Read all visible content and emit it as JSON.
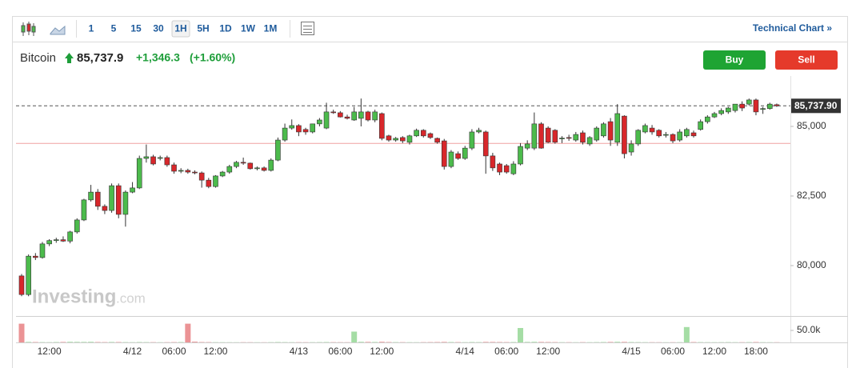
{
  "toolbar": {
    "intervals": [
      "1",
      "5",
      "15",
      "30",
      "1H",
      "5H",
      "1D",
      "1W",
      "1M"
    ],
    "active": "1H",
    "link": "Technical Chart »"
  },
  "quote": {
    "name": "Bitcoin",
    "price": "85,737.9",
    "change": "+1,346.3",
    "change_pct": "(+1.60%)"
  },
  "buttons": {
    "buy": "Buy",
    "sell": "Sell"
  },
  "watermark": {
    "brand": "Investing",
    "suffix": ".com"
  },
  "chart_data": {
    "type": "candlestick",
    "categories": [
      null,
      null,
      null,
      null,
      "12:00",
      null,
      null,
      null,
      null,
      null,
      null,
      null,
      null,
      null,
      null,
      null,
      "4/12",
      null,
      null,
      null,
      null,
      null,
      "06:00",
      null,
      null,
      null,
      null,
      null,
      "12:00",
      null,
      null,
      null,
      null,
      null,
      null,
      null,
      null,
      null,
      null,
      null,
      "4/13",
      null,
      null,
      null,
      null,
      null,
      "06:00",
      null,
      null,
      null,
      null,
      null,
      "12:00",
      null,
      null,
      null,
      null,
      null,
      null,
      null,
      null,
      null,
      null,
      null,
      "4/14",
      null,
      null,
      null,
      null,
      null,
      "06:00",
      null,
      null,
      null,
      null,
      null,
      "12:00",
      null,
      null,
      null,
      null,
      null,
      null,
      null,
      null,
      null,
      null,
      null,
      "4/15",
      null,
      null,
      null,
      null,
      null,
      "06:00",
      null,
      null,
      null,
      null,
      null,
      "12:00",
      null,
      null,
      null,
      null,
      null,
      "18:00",
      null,
      null,
      null
    ],
    "open": [
      79630,
      78960,
      80340,
      80290,
      80780,
      80900,
      80930,
      80880,
      81210,
      81640,
      82360,
      82640,
      82130,
      81980,
      82870,
      81840,
      82640,
      82790,
      83850,
      83910,
      83860,
      83880,
      83620,
      83390,
      83420,
      83360,
      83330,
      83070,
      82840,
      83220,
      83360,
      83560,
      83710,
      83680,
      83480,
      83510,
      83420,
      83790,
      84510,
      84940,
      85030,
      84890,
      84800,
      85090,
      84940,
      85520,
      85490,
      85340,
      85230,
      85290,
      85520,
      85230,
      85460,
      84660,
      84510,
      84600,
      84430,
      84660,
      84860,
      84740,
      84570,
      84480,
      83560,
      84020,
      83850,
      84220,
      84800,
      84800,
      83940,
      83650,
      83590,
      83300,
      83650,
      84220,
      84220,
      85090,
      84940,
      84860,
      84550,
      84600,
      84510,
      84770,
      84370,
      84510,
      84660,
      85170,
      84430,
      85370,
      84080,
      84370,
      84800,
      84940,
      84860,
      84690,
      84710,
      84510,
      84660,
      84770,
      84890,
      85170,
      85340,
      85460,
      85520,
      85570,
      85800,
      85800,
      85950,
      85610,
      85640,
      85780
    ],
    "high": [
      79700,
      80400,
      80450,
      80850,
      80950,
      81000,
      81050,
      81250,
      81700,
      82400,
      82900,
      82750,
      82200,
      82950,
      82950,
      82700,
      83000,
      83950,
      84350,
      83980,
      83950,
      83950,
      83700,
      83500,
      83480,
      83420,
      83380,
      83150,
      83250,
      83400,
      83620,
      83760,
      83880,
      83700,
      83560,
      83560,
      83850,
      84600,
      85100,
      85250,
      85080,
      84950,
      85100,
      85300,
      85850,
      85600,
      85550,
      85420,
      85700,
      86000,
      85560,
      85600,
      85500,
      84700,
      84620,
      84650,
      84700,
      84920,
      84900,
      84780,
      84600,
      84550,
      84150,
      84100,
      84300,
      84900,
      84950,
      84850,
      84050,
      83700,
      83650,
      83750,
      84400,
      84500,
      85500,
      85150,
      85000,
      84900,
      84650,
      84700,
      84800,
      84850,
      84650,
      85000,
      85150,
      85300,
      85800,
      85400,
      84500,
      84900,
      85100,
      85050,
      84900,
      84800,
      84750,
      84900,
      84950,
      84850,
      85250,
      85400,
      85520,
      85650,
      85700,
      85800,
      85900,
      86000,
      86000,
      85700,
      85850,
      85820
    ],
    "low": [
      78900,
      78900,
      80200,
      80250,
      80700,
      80820,
      80850,
      80800,
      81150,
      81600,
      82300,
      82000,
      81850,
      81900,
      81700,
      81400,
      82600,
      82750,
      83700,
      83600,
      83780,
      83550,
      83300,
      83320,
      83300,
      83280,
      82800,
      82780,
      82800,
      83180,
      83300,
      83500,
      83620,
      83450,
      83420,
      83380,
      83380,
      83750,
      84450,
      84880,
      84650,
      84700,
      84750,
      85000,
      84900,
      85450,
      85320,
      85250,
      85200,
      85000,
      85180,
      85150,
      84500,
      84450,
      84450,
      84400,
      84350,
      84620,
      84600,
      84550,
      84380,
      83450,
      83500,
      83800,
      83800,
      84150,
      84750,
      83300,
      83400,
      83250,
      83300,
      83250,
      83600,
      84150,
      84150,
      84200,
      84400,
      84380,
      84400,
      84480,
      84450,
      84350,
      84300,
      84450,
      84600,
      84300,
      84300,
      83850,
      83950,
      84300,
      84750,
      84700,
      84600,
      84600,
      84400,
      84450,
      84600,
      84600,
      84850,
      85100,
      85300,
      85400,
      85450,
      85500,
      85550,
      85750,
      85400,
      85450,
      85600,
      85700
    ],
    "close": [
      78960,
      80340,
      80290,
      80780,
      80900,
      80930,
      80880,
      81210,
      81640,
      82360,
      82640,
      82130,
      81980,
      82870,
      81840,
      82640,
      82790,
      83850,
      83910,
      83650,
      83880,
      83620,
      83390,
      83420,
      83360,
      83330,
      83070,
      82840,
      83220,
      83360,
      83560,
      83710,
      83680,
      83480,
      83510,
      83420,
      83790,
      84510,
      84940,
      85030,
      84800,
      84800,
      85090,
      85230,
      85520,
      85490,
      85340,
      85290,
      85520,
      85520,
      85230,
      85520,
      84570,
      84510,
      84570,
      84480,
      84660,
      84860,
      84660,
      84600,
      84430,
      83560,
      84080,
      83850,
      84220,
      84800,
      84860,
      83940,
      83510,
      83360,
      83360,
      83650,
      84280,
      84370,
      85090,
      84220,
      84430,
      84430,
      84580,
      84580,
      84710,
      84430,
      84600,
      84940,
      85090,
      84510,
      85460,
      84020,
      84370,
      84860,
      85030,
      84800,
      84660,
      84710,
      84480,
      84800,
      84890,
      84660,
      85170,
      85340,
      85460,
      85570,
      85660,
      85800,
      85660,
      85950,
      85520,
      85640,
      85800,
      85737.9
    ],
    "volume": [
      78000,
      2000,
      1500,
      1200,
      1000,
      1500,
      1800,
      2500,
      2200,
      2000,
      2500,
      1500,
      1200,
      1800,
      1500,
      1200,
      1000,
      1500,
      1200,
      1000,
      800,
      900,
      1200,
      1500,
      78000,
      3000,
      1500,
      1200,
      1000,
      900,
      800,
      700,
      900,
      800,
      700,
      600,
      1000,
      1500,
      1200,
      1000,
      900,
      800,
      1000,
      1200,
      1500,
      1000,
      900,
      800,
      45000,
      2500,
      2000,
      1800,
      2500,
      1500,
      1200,
      1000,
      900,
      800,
      1000,
      1200,
      1500,
      2000,
      1500,
      1200,
      1000,
      1500,
      1200,
      2000,
      1800,
      1500,
      1200,
      1500,
      60000,
      2000,
      2500,
      1800,
      1500,
      1200,
      1000,
      900,
      800,
      1000,
      900,
      1200,
      1500,
      1800,
      2500,
      2000,
      1500,
      1200,
      1000,
      900,
      800,
      700,
      800,
      1000,
      64000,
      1500,
      1200,
      1000,
      900,
      1000,
      1200,
      1000,
      900,
      1200,
      1500,
      1000,
      800,
      700
    ],
    "ylim": [
      78190,
      86810
    ],
    "yticks": [
      {
        "value": 80000,
        "label": "80,000"
      },
      {
        "value": 82500,
        "label": "82,500"
      },
      {
        "value": 85000,
        "label": "85,000"
      }
    ],
    "last_price": {
      "value": 85737.9,
      "label": "85,737.90"
    },
    "prev_close": 84390,
    "volume_ylim": [
      0,
      110000
    ],
    "volume_yticks": [
      {
        "value": 50000,
        "label": "50.0k"
      }
    ],
    "up_color": "#4cbb4c",
    "down_color": "#d8272b",
    "grid": false
  }
}
